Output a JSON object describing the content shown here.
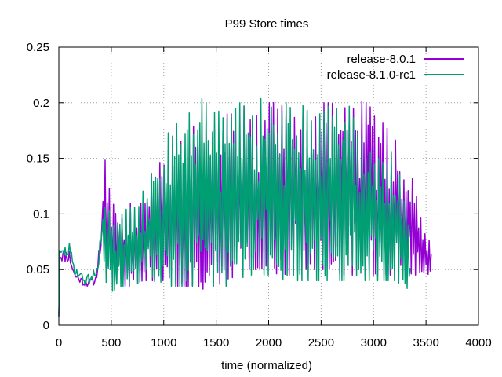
{
  "chart_data": {
    "type": "line",
    "title": "P99 Store times",
    "xlabel": "time (normalized)",
    "ylabel": "",
    "xlim": [
      0,
      4000
    ],
    "ylim": [
      0,
      0.25
    ],
    "xticks": [
      "0",
      "500",
      "1000",
      "1500",
      "2000",
      "2500",
      "3000",
      "3500",
      "4000"
    ],
    "yticks": [
      "0",
      "0.05",
      "0.1",
      "0.15",
      "0.2",
      "0.25"
    ],
    "grid": true,
    "legend_position": "top-right",
    "series": [
      {
        "name": "release-8.0.1",
        "color": "#9400d3",
        "x_start": 0,
        "x_end": 3550,
        "n": 355,
        "seed": 11,
        "envelope_x": [
          0,
          100,
          150,
          250,
          350,
          400,
          440,
          500,
          600,
          700,
          800,
          900,
          1000,
          1100,
          1200,
          1300,
          1400,
          1500,
          1600,
          1700,
          1800,
          1900,
          2000,
          2100,
          2200,
          2300,
          2400,
          2500,
          2600,
          2700,
          2800,
          2900,
          3000,
          3100,
          3200,
          3300,
          3400,
          3550
        ],
        "lows": [
          0.05,
          0.045,
          0.035,
          0.03,
          0.03,
          0.05,
          0.05,
          0.04,
          0.035,
          0.035,
          0.04,
          0.04,
          0.04,
          0.035,
          0.035,
          0.035,
          0.03,
          0.035,
          0.04,
          0.045,
          0.05,
          0.05,
          0.05,
          0.045,
          0.045,
          0.05,
          0.05,
          0.05,
          0.05,
          0.045,
          0.045,
          0.045,
          0.045,
          0.045,
          0.045,
          0.045,
          0.045,
          0.045
        ],
        "highs": [
          0.075,
          0.08,
          0.055,
          0.045,
          0.05,
          0.1,
          0.15,
          0.12,
          0.11,
          0.11,
          0.12,
          0.14,
          0.15,
          0.16,
          0.17,
          0.18,
          0.18,
          0.18,
          0.19,
          0.19,
          0.2,
          0.2,
          0.2,
          0.2,
          0.19,
          0.19,
          0.19,
          0.2,
          0.2,
          0.19,
          0.21,
          0.2,
          0.2,
          0.18,
          0.17,
          0.16,
          0.12,
          0.07
        ]
      },
      {
        "name": "release-8.1.0-rc1",
        "color": "#009e73",
        "x_start": 0,
        "x_end": 3350,
        "n": 335,
        "seed": 29,
        "envelope_x": [
          0,
          100,
          150,
          250,
          350,
          400,
          440,
          500,
          600,
          700,
          800,
          900,
          1000,
          1100,
          1200,
          1300,
          1400,
          1500,
          1600,
          1700,
          1800,
          1900,
          2000,
          2100,
          2200,
          2300,
          2400,
          2500,
          2600,
          2700,
          2800,
          2900,
          3000,
          3100,
          3200,
          3300,
          3350
        ],
        "lows": [
          0.05,
          0.05,
          0.04,
          0.03,
          0.03,
          0.05,
          0.04,
          0.03,
          0.035,
          0.035,
          0.04,
          0.04,
          0.035,
          0.035,
          0.035,
          0.035,
          0.035,
          0.035,
          0.035,
          0.04,
          0.045,
          0.045,
          0.045,
          0.04,
          0.04,
          0.04,
          0.04,
          0.04,
          0.04,
          0.04,
          0.04,
          0.04,
          0.04,
          0.04,
          0.04,
          0.035,
          0.03
        ],
        "highs": [
          0.075,
          0.085,
          0.06,
          0.05,
          0.06,
          0.1,
          0.11,
          0.1,
          0.1,
          0.11,
          0.12,
          0.14,
          0.16,
          0.19,
          0.22,
          0.21,
          0.2,
          0.19,
          0.2,
          0.2,
          0.21,
          0.21,
          0.22,
          0.2,
          0.2,
          0.2,
          0.19,
          0.19,
          0.2,
          0.19,
          0.2,
          0.19,
          0.18,
          0.17,
          0.15,
          0.12,
          0.07
        ]
      }
    ]
  }
}
